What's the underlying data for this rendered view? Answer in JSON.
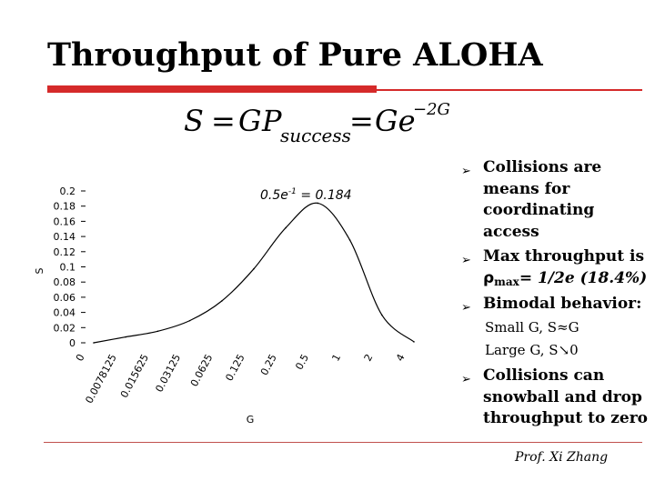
{
  "slide": {
    "title": "Throughput of Pure ALOHA",
    "author": "Prof. Xi Zhang"
  },
  "formula": {
    "lhs": "S",
    "eq": "=",
    "g": "G",
    "p": "P",
    "p_sub": "success",
    "eq2": "=",
    "ge": "Ge",
    "exponent": "−2G"
  },
  "bullets": {
    "b1": [
      "Collisions are",
      "means for",
      "coordinating",
      "access"
    ],
    "b2_line1": "Max throughput is",
    "b2_rho": "ρ",
    "b2_max": "max",
    "b2_rest": "= 1/2e (18.4%)",
    "b3": "Bimodal behavior:",
    "sub1": "Small G, S≈G",
    "sub2": "Large G, S↘0",
    "b4": [
      "Collisions can",
      "snowball and drop",
      "throughput to zero"
    ]
  },
  "chart_data": {
    "type": "line",
    "title": "",
    "xlabel": "G",
    "ylabel": "S",
    "x": [
      "0",
      "0.0078125",
      "0.015625",
      "0.03125",
      "0.0625",
      "0.125",
      "0.25",
      "0.5",
      "1",
      "2",
      "4"
    ],
    "series": [
      {
        "name": "S = Ge^-2G",
        "values": [
          0,
          0.0077,
          0.0152,
          0.0292,
          0.0551,
          0.0974,
          0.1516,
          0.1839,
          0.1353,
          0.0366,
          0.0013
        ]
      }
    ],
    "ylim": [
      0,
      0.2
    ],
    "yticks": [
      "0",
      "0.02",
      "0.04",
      "0.06",
      "0.08",
      "0.1",
      "0.12",
      "0.14",
      "0.16",
      "0.18",
      "0.2"
    ],
    "annotation": {
      "base": "0.5e",
      "exp": "-1",
      "rest": " = 0.184"
    }
  }
}
